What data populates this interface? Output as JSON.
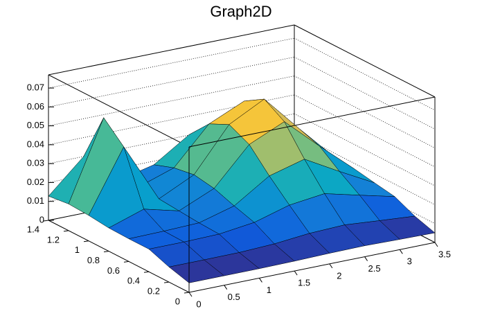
{
  "chart_data": {
    "type": "surface",
    "title": "Graph2D",
    "x": [
      0,
      0.5,
      1,
      1.5,
      2,
      2.5,
      3,
      3.5
    ],
    "y": [
      0,
      0.2,
      0.4,
      0.6,
      0.8,
      1.0,
      1.2,
      1.4
    ],
    "z": [
      [
        0.005,
        0.005,
        0.005,
        0.0052,
        0.0056,
        0.0058,
        0.0054,
        0.0051
      ],
      [
        0.008,
        0.008,
        0.0081,
        0.0089,
        0.0107,
        0.0114,
        0.0099,
        0.0085
      ],
      [
        0.012,
        0.012,
        0.0124,
        0.0148,
        0.0202,
        0.0225,
        0.0179,
        0.0134
      ],
      [
        0.012,
        0.0123,
        0.0129,
        0.0181,
        0.0302,
        0.0353,
        0.025,
        0.0152
      ],
      [
        0.0123,
        0.0185,
        0.0138,
        0.0219,
        0.0414,
        0.0497,
        0.033,
        0.0171
      ],
      [
        0.0135,
        0.046,
        0.0147,
        0.0237,
        0.0465,
        0.0562,
        0.0367,
        0.018
      ],
      [
        0.0141,
        0.056,
        0.0156,
        0.0219,
        0.0414,
        0.0497,
        0.033,
        0.0171
      ],
      [
        0.0128,
        0.03,
        0.0137,
        0.0181,
        0.0302,
        0.0353,
        0.025,
        0.0152
      ]
    ],
    "xlim": [
      0,
      3.5
    ],
    "ylim": [
      0,
      1.4
    ],
    "zlim": [
      0,
      0.077
    ],
    "xticks": [
      0,
      0.5,
      1,
      1.5,
      2,
      2.5,
      3,
      3.5
    ],
    "yticks": [
      0,
      0.2,
      0.4,
      0.6,
      0.8,
      1,
      1.2,
      1.4
    ],
    "zticks": [
      0,
      0.01,
      0.02,
      0.03,
      0.04,
      0.05,
      0.06,
      0.07
    ],
    "grid": true,
    "palette": [
      "#352a87",
      "#0f5cdd",
      "#1481d6",
      "#06a4ca",
      "#2eb7a4",
      "#87bf77",
      "#d1bb59",
      "#fec832",
      "#f9fb0e"
    ]
  }
}
